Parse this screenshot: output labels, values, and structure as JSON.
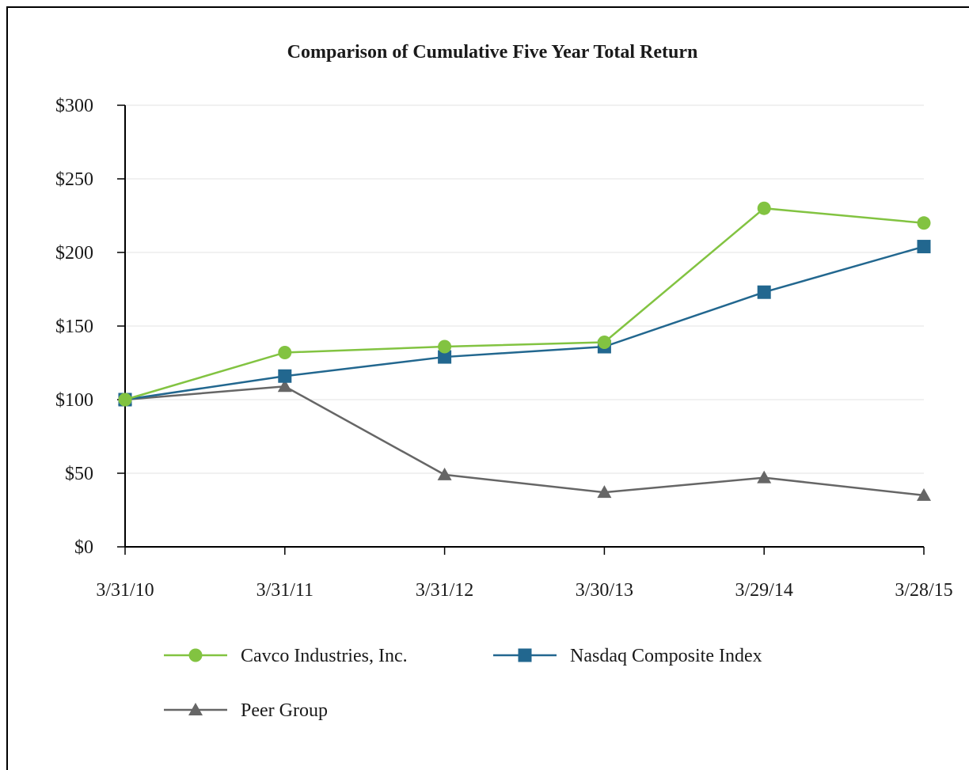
{
  "chart_data": {
    "type": "line",
    "title": "Comparison of Cumulative Five Year Total Return",
    "xlabel": "",
    "ylabel": "",
    "categories": [
      "3/31/10",
      "3/31/11",
      "3/31/12",
      "3/30/13",
      "3/29/14",
      "3/28/15"
    ],
    "y_ticks": [
      "$0",
      "$50",
      "$100",
      "$150",
      "$200",
      "$250",
      "$300"
    ],
    "ylim": [
      0,
      300
    ],
    "grid": true,
    "legend_position": "bottom",
    "series": [
      {
        "name": "Cavco Industries, Inc.",
        "values": [
          100,
          132,
          136,
          139,
          230,
          220
        ],
        "color": "#82c341",
        "marker": "circle"
      },
      {
        "name": "Nasdaq Composite Index",
        "values": [
          100,
          116,
          129,
          136,
          173,
          204
        ],
        "color": "#22678f",
        "marker": "square"
      },
      {
        "name": "Peer Group",
        "values": [
          100,
          109,
          49,
          37,
          47,
          35
        ],
        "color": "#666666",
        "marker": "triangle"
      }
    ]
  }
}
